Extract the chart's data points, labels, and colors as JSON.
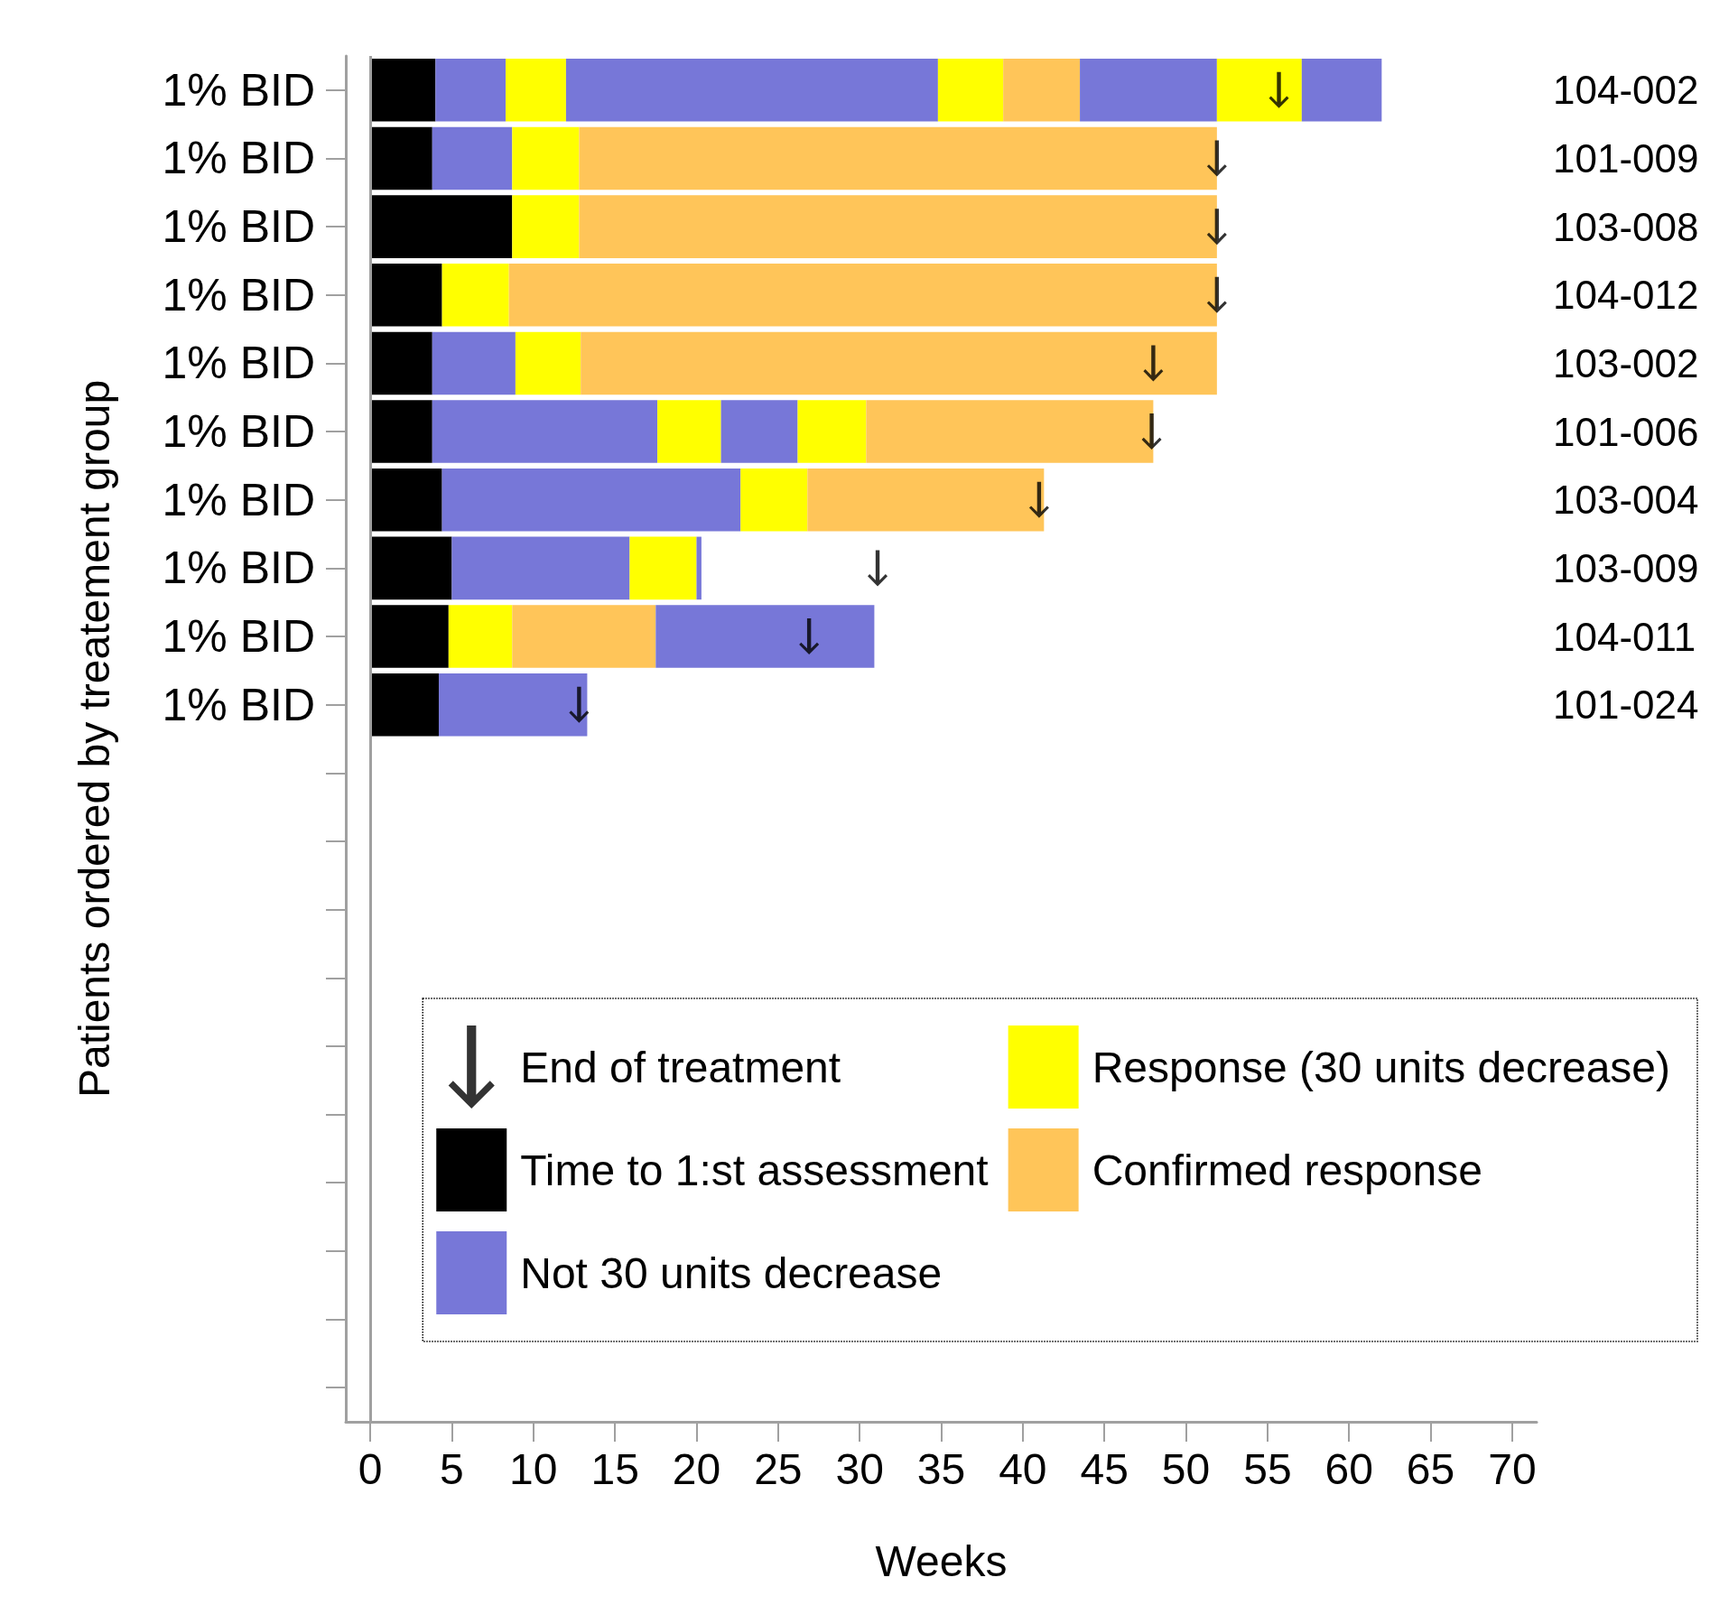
{
  "chart_data": {
    "type": "bar",
    "orientation": "horizontal",
    "stacked": true,
    "ylabel": "Patients ordered by treatement group",
    "xlabel": "Weeks",
    "categories": [
      "1% BID",
      "1% BID",
      "1% BID",
      "1% BID",
      "1% BID",
      "1% BID",
      "1% BID",
      "1% BID",
      "1% BID",
      "1% BID",
      null,
      null,
      null,
      null,
      null,
      null,
      null,
      null,
      null,
      null
    ],
    "y2_categories": [
      "104-002",
      "101-009",
      "103-008",
      "104-012",
      "103-002",
      "101-006",
      "103-004",
      "103-009",
      "104-011",
      "101-024",
      null,
      null,
      null,
      null,
      null,
      null,
      null,
      null,
      null,
      null
    ],
    "xlim": [
      -1.5,
      71.5
    ],
    "xticks": [
      0,
      5,
      10,
      15,
      20,
      25,
      30,
      35,
      40,
      45,
      50,
      55,
      60,
      65,
      70
    ],
    "ref_lines": [
      {
        "axis": "x",
        "value": 0,
        "color": "#a0a0a0"
      }
    ],
    "legend": "bottom right",
    "grid": false,
    "series": [
      {
        "name": "Time to 1:st assessment",
        "color": "#000000",
        "values": [
          4.0,
          3.8,
          8.7,
          4.4,
          3.8,
          3.8,
          4.4,
          5.0,
          4.8,
          4.2,
          null,
          null,
          null,
          null,
          null,
          null,
          null,
          null,
          null,
          null
        ]
      },
      {
        "name": "Not 30 units decrease",
        "color": "#7777d8",
        "values": [
          4.3,
          4.9,
          null,
          null,
          5.1,
          13.8,
          18.3,
          10.9,
          null,
          9.1,
          null,
          null,
          null,
          null,
          null,
          null,
          null,
          null,
          null,
          null
        ]
      },
      {
        "name": "Response (30 units decrease)",
        "color": "#ffff00",
        "values": [
          3.7,
          4.1,
          4.1,
          4.1,
          4.0,
          3.9,
          4.1,
          4.1,
          3.9,
          null,
          null,
          null,
          null,
          null,
          null,
          null,
          null,
          null,
          null,
          null
        ]
      },
      {
        "color": "#7777d8",
        "values": [
          22.8,
          null,
          null,
          null,
          null,
          4.7,
          null,
          0.3,
          null,
          null,
          null,
          null,
          null,
          null,
          null,
          null,
          null,
          null,
          null,
          null
        ]
      },
      {
        "color": "#ffff00",
        "values": [
          4.0,
          null,
          null,
          null,
          null,
          4.2,
          null,
          null,
          null,
          null,
          null,
          null,
          null,
          null,
          null,
          null,
          null,
          null,
          null,
          null
        ]
      },
      {
        "name": "Confirmed response",
        "color": "#ffc559",
        "values": [
          4.7,
          39.1,
          39.1,
          43.4,
          39.0,
          17.6,
          14.5,
          null,
          8.8,
          null,
          null,
          null,
          null,
          null,
          null,
          null,
          null,
          null,
          null,
          null
        ]
      },
      {
        "color": "#7777d8",
        "values": [
          8.4,
          null,
          null,
          null,
          null,
          null,
          null,
          null,
          13.4,
          null,
          null,
          null,
          null,
          null,
          null,
          null,
          null,
          null,
          null,
          null
        ]
      },
      {
        "color": "#ffff00",
        "values": [
          5.2,
          null,
          null,
          null,
          null,
          null,
          null,
          null,
          null,
          null,
          null,
          null,
          null,
          null,
          null,
          null,
          null,
          null,
          null,
          null
        ]
      },
      {
        "color": "#7777d8",
        "values": [
          4.9,
          null,
          null,
          null,
          null,
          null,
          null,
          null,
          null,
          null,
          null,
          null,
          null,
          null,
          null,
          null,
          null,
          null,
          null,
          null
        ]
      },
      {
        "name": "End of treatment",
        "type": "scatter",
        "color": "#000000",
        "values": [
          55.7,
          51.9,
          51.9,
          51.9,
          48.0,
          47.9,
          41.0,
          31.1,
          26.9,
          12.8,
          null,
          null,
          null,
          null,
          null,
          null,
          null,
          null,
          null,
          null
        ]
      }
    ]
  }
}
